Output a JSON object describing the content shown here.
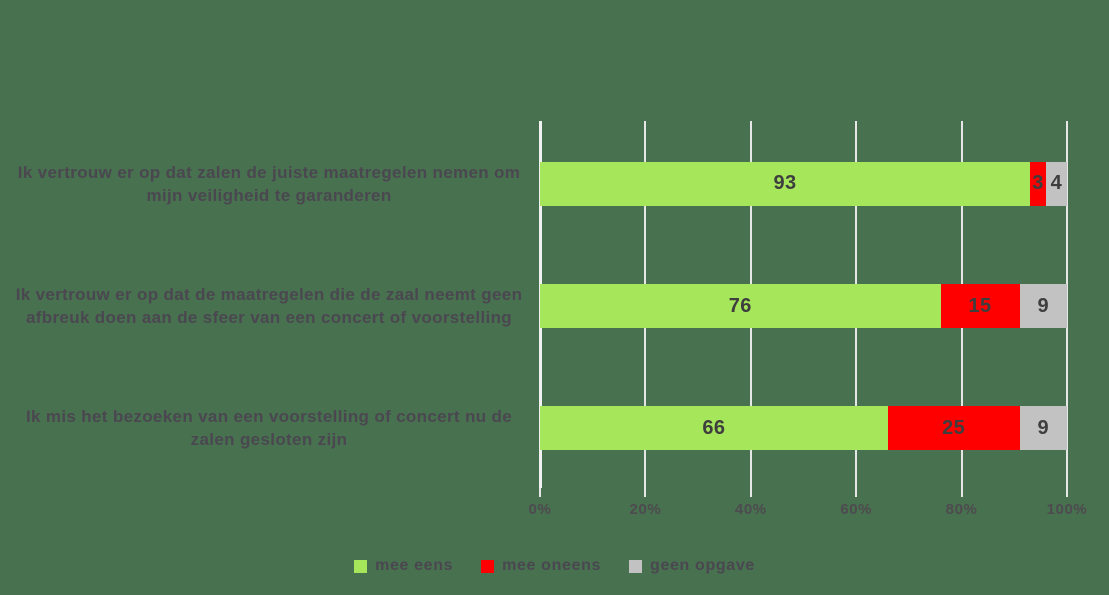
{
  "chart_data": {
    "type": "bar",
    "orientation": "horizontal",
    "stacked": true,
    "unit": "%",
    "categories": [
      "Ik vertrouw er op dat zalen de juiste maatregelen nemen om mijn veiligheid te garanderen",
      "Ik vertrouw er op dat de maatregelen die de zaal neemt geen afbreuk doen aan de sfeer van een concert of voorstelling",
      "Ik mis het bezoeken van een voorstelling of concert nu de zalen gesloten zijn"
    ],
    "series": [
      {
        "name": "mee eens",
        "color": "#a5e65a",
        "values": [
          93,
          76,
          66
        ]
      },
      {
        "name": "mee oneens",
        "color": "#ff0000",
        "values": [
          3,
          15,
          25
        ]
      },
      {
        "name": "geen opgave",
        "color": "#c2c2c2",
        "values": [
          4,
          9,
          9
        ]
      }
    ],
    "xlim": [
      0,
      100
    ],
    "x_tick_labels": [
      "0%",
      "20%",
      "40%",
      "60%",
      "80%",
      "100%"
    ],
    "grid": true,
    "legend_position": "bottom",
    "title": ""
  },
  "colors": {
    "background": "#47714f",
    "gridline": "#e6e6e6",
    "category_label": "#4b4750",
    "axis_label": "#4e4a4f",
    "value_label": "#3e3e3e",
    "legend_label": "#4b4750"
  }
}
